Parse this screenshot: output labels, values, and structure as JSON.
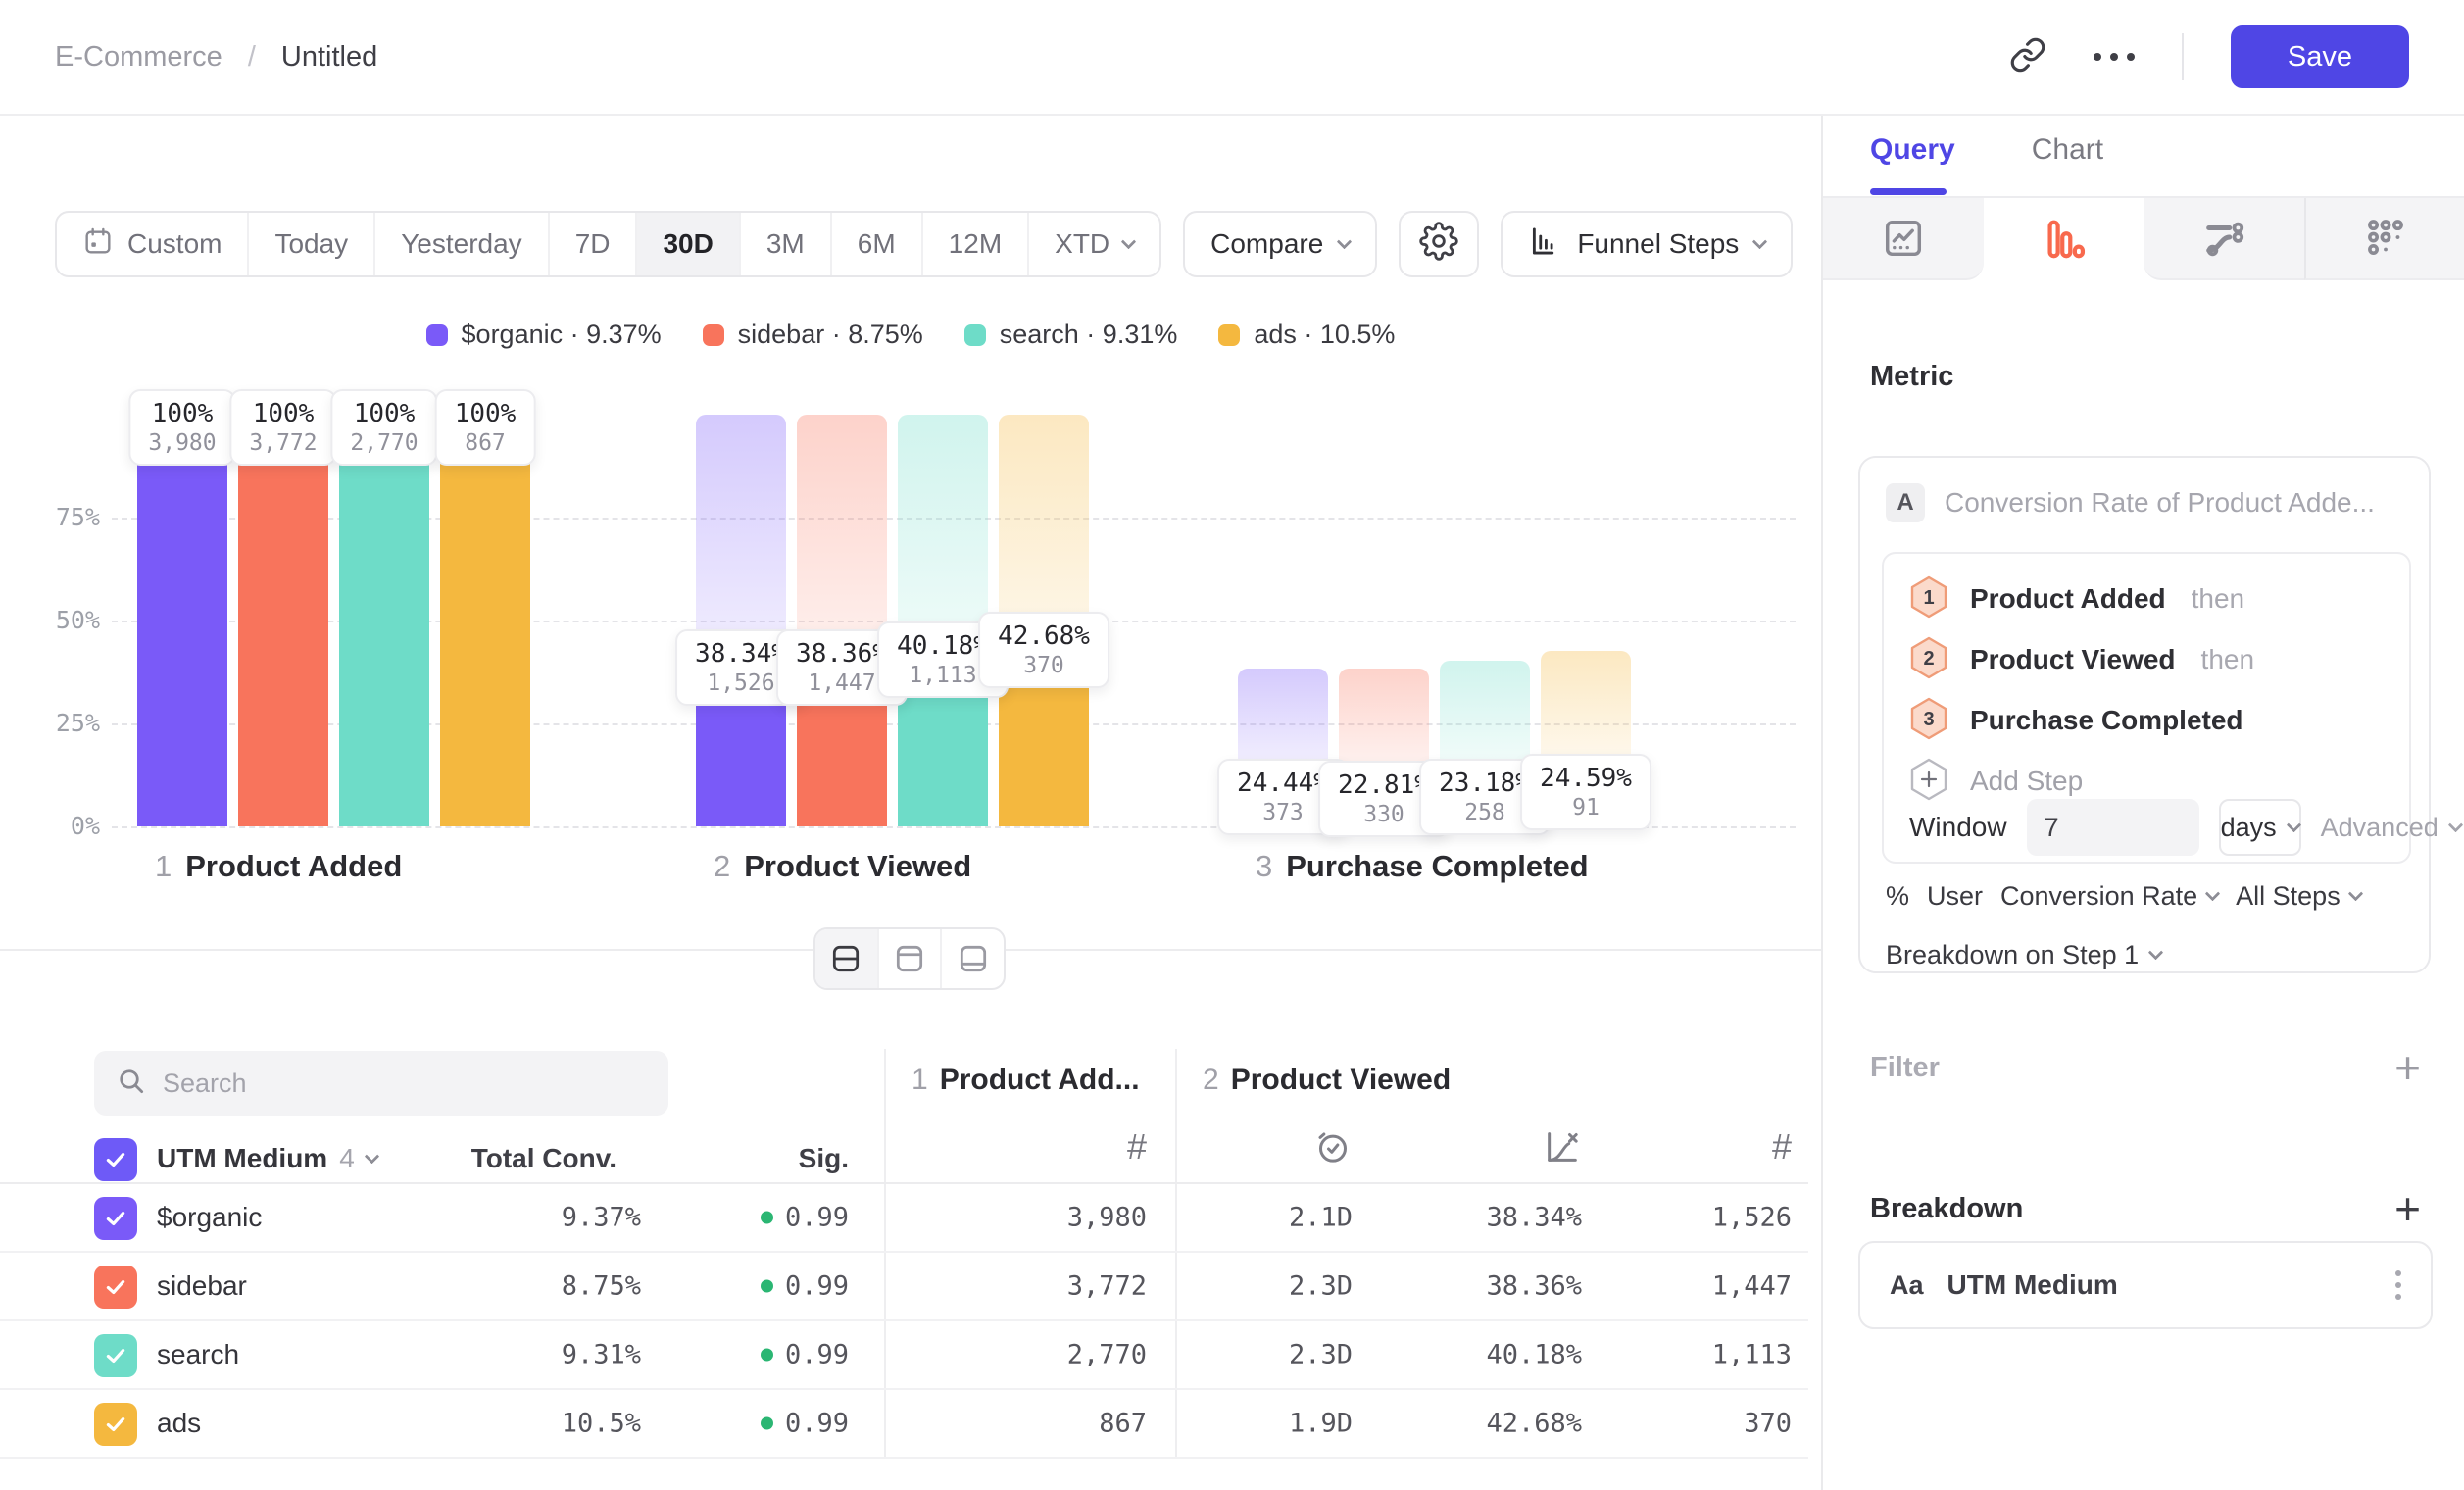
{
  "header": {
    "project": "E-Commerce",
    "separator": "/",
    "title": "Untitled",
    "save_label": "Save"
  },
  "toolbar": {
    "date_ranges": [
      {
        "label": "Custom",
        "icon": "calendar",
        "selected": false
      },
      {
        "label": "Today",
        "selected": false
      },
      {
        "label": "Yesterday",
        "selected": false
      },
      {
        "label": "7D",
        "selected": false
      },
      {
        "label": "30D",
        "selected": true
      },
      {
        "label": "3M",
        "selected": false
      },
      {
        "label": "6M",
        "selected": false
      },
      {
        "label": "12M",
        "selected": false
      },
      {
        "label": "XTD",
        "selected": false,
        "chevron": true
      }
    ],
    "compare_label": "Compare",
    "view_label": "Funnel Steps"
  },
  "legend": [
    {
      "name": "$organic",
      "value": "9.37%",
      "color": "#7A5AF8"
    },
    {
      "name": "sidebar",
      "value": "8.75%",
      "color": "#F8745C"
    },
    {
      "name": "search",
      "value": "9.31%",
      "color": "#6EDCC8"
    },
    {
      "name": "ads",
      "value": "10.5%",
      "color": "#F4B83F"
    }
  ],
  "chart_data": {
    "type": "bar",
    "subtype": "funnel-steps-grouped",
    "title": "",
    "categories": [
      "$organic",
      "sidebar",
      "search",
      "ads"
    ],
    "colors": [
      "#7A5AF8",
      "#F8745C",
      "#6EDCC8",
      "#F4B83F"
    ],
    "ylim": [
      0,
      100
    ],
    "yticks": [
      0,
      25,
      50,
      75
    ],
    "grid": "horizontal-dashed",
    "steps": [
      {
        "num": "1",
        "label": "Product Added",
        "bars": [
          {
            "pct_label": "100%",
            "count_label": "3,980",
            "pct_of_total": 100
          },
          {
            "pct_label": "100%",
            "count_label": "3,772",
            "pct_of_total": 100
          },
          {
            "pct_label": "100%",
            "count_label": "2,770",
            "pct_of_total": 100
          },
          {
            "pct_label": "100%",
            "count_label": "867",
            "pct_of_total": 100
          }
        ]
      },
      {
        "num": "2",
        "label": "Product Viewed",
        "bars": [
          {
            "pct_label": "38.34%",
            "count_label": "1,526",
            "pct_of_total": 38.34
          },
          {
            "pct_label": "38.36%",
            "count_label": "1,447",
            "pct_of_total": 38.36
          },
          {
            "pct_label": "40.18%",
            "count_label": "1,113",
            "pct_of_total": 40.18
          },
          {
            "pct_label": "42.68%",
            "count_label": "370",
            "pct_of_total": 42.68
          }
        ]
      },
      {
        "num": "3",
        "label": "Purchase Completed",
        "bars": [
          {
            "pct_label": "24.44%",
            "count_label": "373",
            "pct_of_total": 9.37
          },
          {
            "pct_label": "22.81%",
            "count_label": "330",
            "pct_of_total": 8.75
          },
          {
            "pct_label": "23.18%",
            "count_label": "258",
            "pct_of_total": 9.31
          },
          {
            "pct_label": "24.59%",
            "count_label": "91",
            "pct_of_total": 10.49
          }
        ]
      }
    ]
  },
  "view_switcher": {
    "options": [
      "split-view",
      "top-view",
      "bottom-view"
    ],
    "selected_index": 0
  },
  "table": {
    "search_placeholder": "Search",
    "group_headers": [
      {
        "num": "1",
        "label": "Product Add..."
      },
      {
        "num": "2",
        "label": "Product Viewed"
      }
    ],
    "header": {
      "breakdown": "UTM Medium",
      "count": "4",
      "total_conv": "Total Conv.",
      "sig": "Sig."
    },
    "header_checkbox_color": "#6E5AF7",
    "sig_color": "#2BB673",
    "rows": [
      {
        "name": "$organic",
        "color": "#7A5AF8",
        "total_conv": "9.37%",
        "sig": "0.99",
        "step1_count": "3,980",
        "time": "2.1D",
        "conv": "38.34%",
        "count": "1,526"
      },
      {
        "name": "sidebar",
        "color": "#F8745C",
        "total_conv": "8.75%",
        "sig": "0.99",
        "step1_count": "3,772",
        "time": "2.3D",
        "conv": "38.36%",
        "count": "1,447"
      },
      {
        "name": "search",
        "color": "#6EDCC8",
        "total_conv": "9.31%",
        "sig": "0.99",
        "step1_count": "2,770",
        "time": "2.3D",
        "conv": "40.18%",
        "count": "1,113"
      },
      {
        "name": "ads",
        "color": "#F4B83F",
        "total_conv": "10.5%",
        "sig": "0.99",
        "step1_count": "867",
        "time": "1.9D",
        "conv": "42.68%",
        "count": "370"
      }
    ]
  },
  "panel": {
    "tabs": [
      {
        "label": "Query",
        "active": true
      },
      {
        "label": "Chart",
        "active": false
      }
    ],
    "metric_heading": "Metric",
    "metric_badge": "A",
    "metric_name": "Conversion Rate of Product Adde...",
    "steps": [
      {
        "num": "1",
        "label": "Product Added",
        "suffix": "then"
      },
      {
        "num": "2",
        "label": "Product Viewed",
        "suffix": "then"
      },
      {
        "num": "3",
        "label": "Purchase Completed",
        "suffix": ""
      }
    ],
    "add_step_label": "Add Step",
    "window_label": "Window",
    "window_value": "7",
    "window_unit": "days",
    "advanced_label": "Advanced",
    "measure": {
      "symbol": "%",
      "entity": "User",
      "metric": "Conversion Rate",
      "scope": "All Steps"
    },
    "breakdown_on_label": "Breakdown on Step 1",
    "filter_heading": "Filter",
    "breakdown_heading": "Breakdown",
    "breakdown_item": {
      "badge": "Aa",
      "label": "UTM Medium",
      "badge_color": "#34B77C"
    }
  },
  "colors": {
    "accent": "#4F46E5",
    "active_tab_icon": "#F8694D"
  }
}
